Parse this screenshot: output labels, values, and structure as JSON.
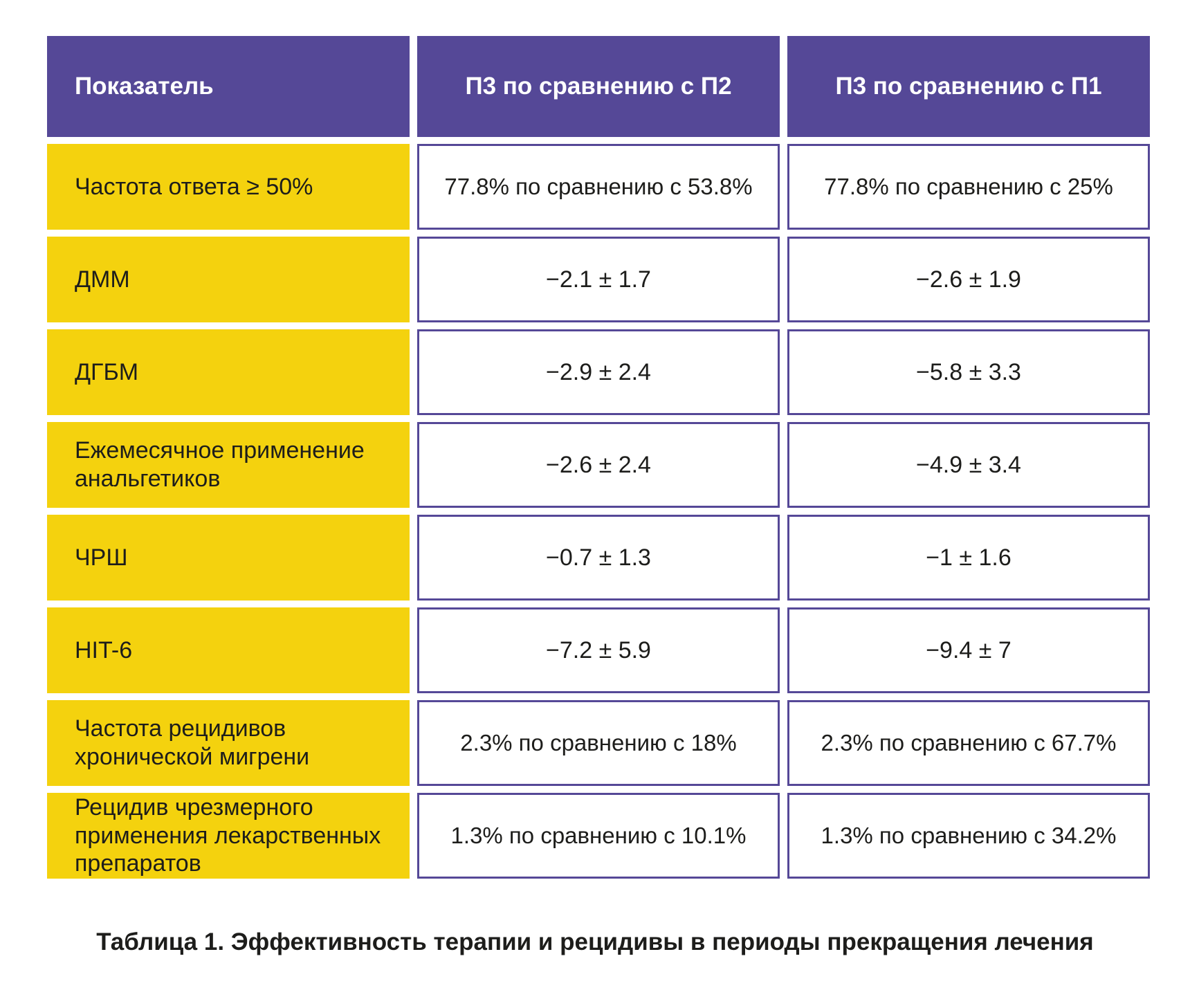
{
  "table": {
    "headers": [
      "Показатель",
      "П3 по сравнению с П2",
      "П3 по сравнению с П1"
    ],
    "rows": [
      {
        "label": "Частота ответа ≥ 50%",
        "p3_vs_p2": "77.8% по сравнению с 53.8%",
        "p3_vs_p1": "77.8% по сравнению с 25%"
      },
      {
        "label": "ДММ",
        "p3_vs_p2": "−2.1 ± 1.7",
        "p3_vs_p1": "−2.6 ± 1.9"
      },
      {
        "label": "ДГБМ",
        "p3_vs_p2": "−2.9 ± 2.4",
        "p3_vs_p1": "−5.8 ± 3.3"
      },
      {
        "label": "Ежемесячное применение анальгетиков",
        "p3_vs_p2": "−2.6 ± 2.4",
        "p3_vs_p1": "−4.9 ± 3.4"
      },
      {
        "label": "ЧРШ",
        "p3_vs_p2": "−0.7 ± 1.3",
        "p3_vs_p1": "−1 ± 1.6"
      },
      {
        "label": "HIT-6",
        "p3_vs_p2": "−7.2 ± 5.9",
        "p3_vs_p1": "−9.4 ± 7"
      },
      {
        "label": "Частота рецидивов хронической мигрени",
        "p3_vs_p2": "2.3% по сравнению с 18%",
        "p3_vs_p1": "2.3% по сравнению с 67.7%"
      },
      {
        "label": "Рецидив чрезмерного применения лекарственных препаратов",
        "p3_vs_p2": "1.3% по сравнению с 10.1%",
        "p3_vs_p1": "1.3% по сравнению с 34.2%"
      }
    ]
  },
  "caption": "Таблица 1. Эффективность терапии и рецидивы в периоды прекращения лечения",
  "colors": {
    "header_bg": "#554897",
    "label_bg": "#f4d20e",
    "border": "#554897",
    "text": "#1d1d1b"
  }
}
